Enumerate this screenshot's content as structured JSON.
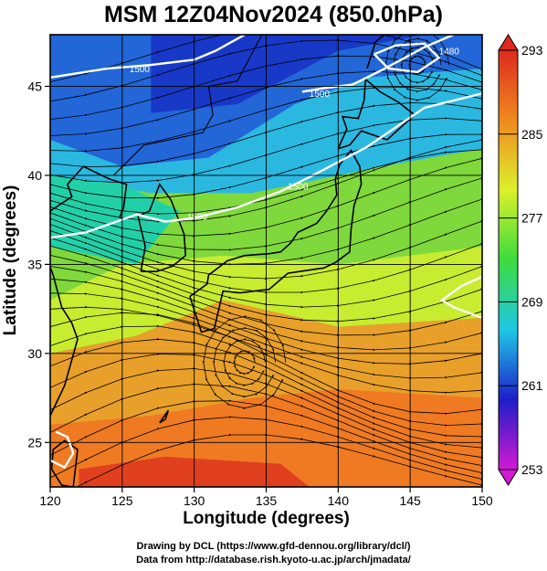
{
  "title": "MSM 12Z04Nov2024 (850.0hPa)",
  "x_axis": {
    "label": "Longitude (degrees)",
    "range": [
      120,
      150
    ],
    "ticks": [
      "120",
      "125",
      "130",
      "135",
      "140",
      "145",
      "150"
    ]
  },
  "y_axis": {
    "label": "Latitude  (degrees)",
    "range": [
      22.5,
      47.9
    ],
    "ticks": [
      "25",
      "30",
      "35",
      "40",
      "45"
    ]
  },
  "colorbar": {
    "range": [
      253,
      293
    ],
    "ticks": [
      "253",
      "261",
      "269",
      "277",
      "285",
      "293"
    ],
    "colors": [
      "#d21ad2",
      "#1e1ec8",
      "#1ec8e6",
      "#3cdc3c",
      "#dcf02a",
      "#f08a1e",
      "#dc2a1e"
    ]
  },
  "contour_labels": [
    "1500",
    "1500",
    "1500",
    "1500",
    "1480"
  ],
  "credits": [
    "Drawing by DCL (https://www.gfd-dennou.org/library/dcl/)",
    "Data from http://database.rish.kyoto-u.ac.jp/arch/jmadata/"
  ]
}
